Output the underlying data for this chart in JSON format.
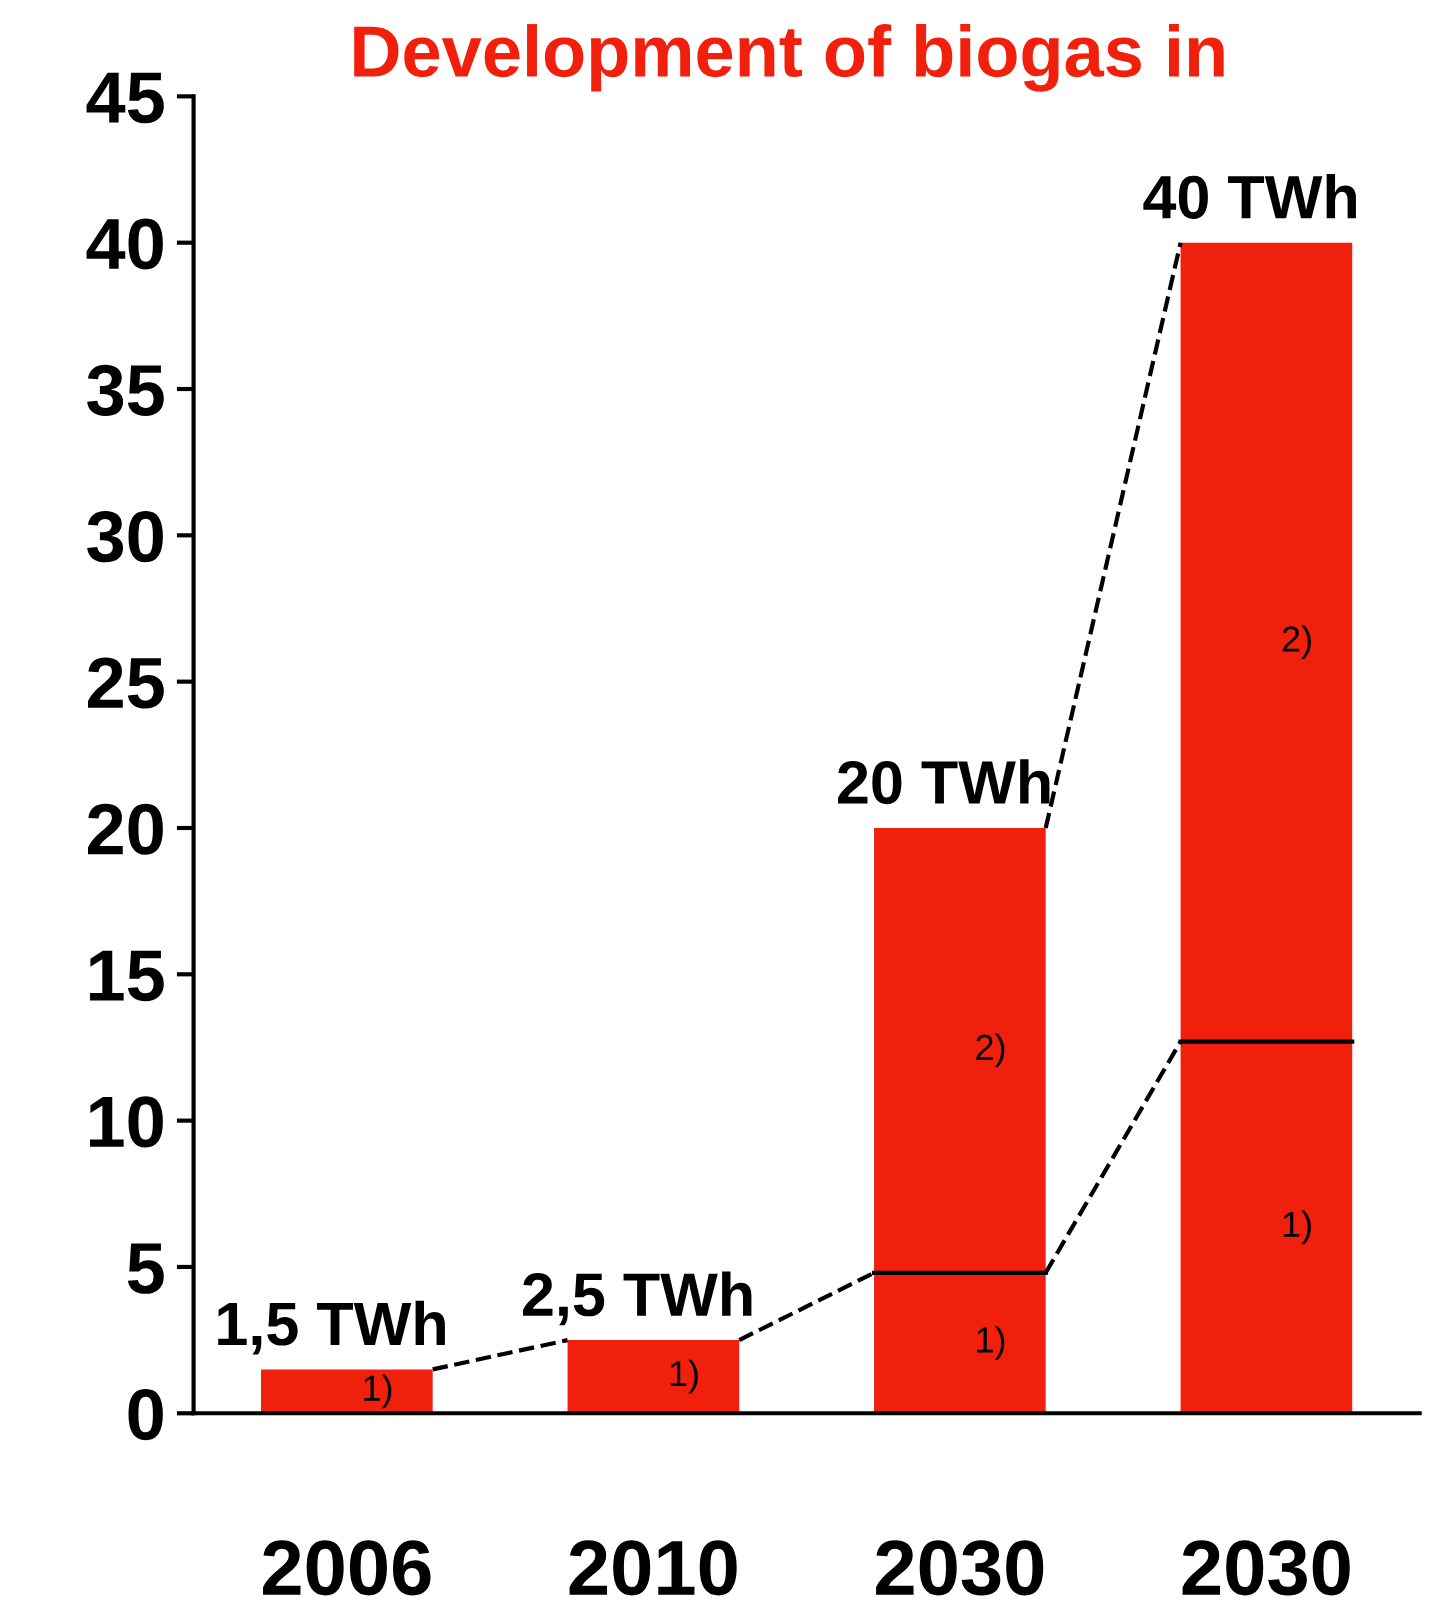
{
  "chart_data": {
    "type": "bar",
    "title": "Development of biogas in",
    "stacked": true,
    "categories": [
      "2006",
      "2010",
      "2030",
      "2030"
    ],
    "series": [
      {
        "name": "1)",
        "color": "#f0200c",
        "values": [
          1.5,
          2.5,
          4.8,
          12.7
        ]
      },
      {
        "name": "2)",
        "color": "#f0200c",
        "values": [
          null,
          null,
          15.2,
          27.3
        ]
      }
    ],
    "totals": [
      "1,5 TWh",
      "2,5 TWh",
      "20 TWh",
      "40 TWh"
    ],
    "ylim": [
      0,
      45
    ],
    "yticks": [
      0,
      5,
      10,
      15,
      20,
      25,
      30,
      35,
      40,
      45
    ],
    "grid": false,
    "legend": false
  }
}
